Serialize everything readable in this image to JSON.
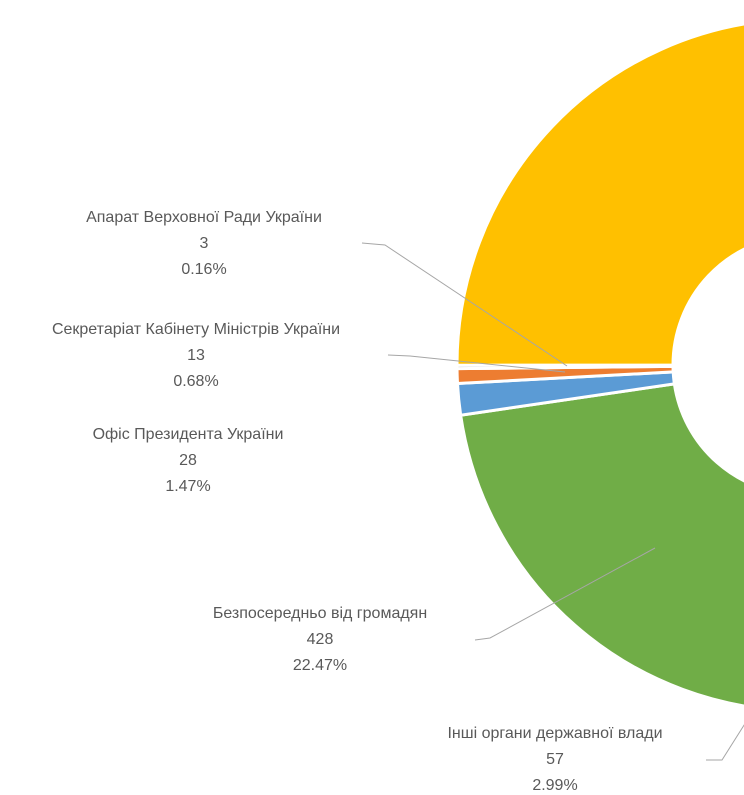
{
  "chart_data": {
    "type": "doughnut",
    "categories": [
      "Інші органи державної влади",
      "Безпосередньо від громадян",
      "Офіс Президента України",
      "Секретаріат Кабінету Міністрів України",
      "Апарат Верховної Ради України",
      null
    ],
    "values": [
      57,
      428,
      28,
      13,
      3,
      1376
    ],
    "percent_labels": [
      "2.99%",
      "22.47%",
      "1.47%",
      "0.68%",
      "0.16%",
      null
    ],
    "colors": [
      "#4472C4",
      "#70AD47",
      "#5B9BD5",
      "#ED7D31",
      "#A5A5A5",
      "#FFC000"
    ]
  }
}
